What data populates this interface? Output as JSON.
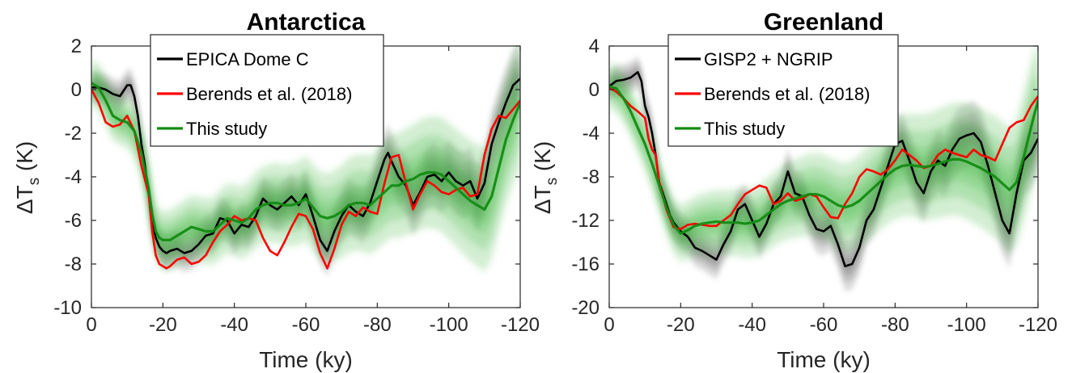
{
  "chart_data": [
    {
      "type": "line",
      "title": "Antarctica",
      "xlabel": "Time (ky)",
      "ylabel_prefix": "ΔT",
      "ylabel_sub": "s",
      "ylabel_suffix": " (K)",
      "xlim": [
        0,
        -120
      ],
      "ylim": [
        -10,
        2
      ],
      "xticks": [
        0,
        -20,
        -40,
        -60,
        -80,
        -100,
        -120
      ],
      "yticks": [
        -10,
        -8,
        -6,
        -4,
        -2,
        0,
        2
      ],
      "grid": false,
      "legend_position": "top-center",
      "series": [
        {
          "name": "EPICA Dome C",
          "color": "#000000",
          "band": true,
          "x": [
            0,
            -2,
            -4,
            -6,
            -8,
            -10,
            -11,
            -12,
            -13,
            -14,
            -15,
            -16,
            -17,
            -18,
            -19,
            -20,
            -21,
            -22,
            -24,
            -26,
            -28,
            -30,
            -32,
            -34,
            -36,
            -38,
            -40,
            -42,
            -44,
            -46,
            -48,
            -50,
            -52,
            -54,
            -56,
            -58,
            -60,
            -62,
            -64,
            -66,
            -68,
            -70,
            -72,
            -74,
            -76,
            -78,
            -80,
            -82,
            -83,
            -84,
            -86,
            -88,
            -90,
            -92,
            -94,
            -96,
            -98,
            -100,
            -102,
            -104,
            -106,
            -108,
            -110,
            -112,
            -114,
            -116,
            -118,
            -120
          ],
          "y": [
            0.1,
            0.1,
            0.0,
            -0.2,
            -0.3,
            0.2,
            0.2,
            -0.3,
            -1.2,
            -2.5,
            -3.5,
            -4.8,
            -6.0,
            -6.8,
            -7.2,
            -7.4,
            -7.5,
            -7.4,
            -7.3,
            -7.5,
            -7.4,
            -7.1,
            -6.7,
            -6.6,
            -5.9,
            -6.0,
            -6.6,
            -6.2,
            -6.3,
            -5.8,
            -5.0,
            -5.3,
            -5.5,
            -5.2,
            -4.9,
            -5.3,
            -4.8,
            -5.8,
            -6.9,
            -7.4,
            -6.5,
            -5.8,
            -5.3,
            -5.6,
            -5.8,
            -5.2,
            -4.2,
            -3.2,
            -2.9,
            -3.3,
            -4.0,
            -4.4,
            -5.3,
            -4.7,
            -4.0,
            -3.9,
            -4.2,
            -3.8,
            -4.2,
            -4.4,
            -4.2,
            -5.0,
            -4.3,
            -2.5,
            -1.5,
            -0.6,
            0.2,
            0.5
          ]
        },
        {
          "name": "Berends et al. (2018)",
          "color": "#ff0000",
          "band": false,
          "x": [
            0,
            -2,
            -4,
            -6,
            -8,
            -10,
            -12,
            -14,
            -16,
            -17,
            -18,
            -19,
            -20,
            -21,
            -22,
            -24,
            -26,
            -28,
            -30,
            -32,
            -34,
            -36,
            -38,
            -40,
            -42,
            -44,
            -46,
            -48,
            -50,
            -52,
            -54,
            -56,
            -58,
            -60,
            -62,
            -64,
            -66,
            -68,
            -70,
            -72,
            -74,
            -76,
            -78,
            -80,
            -82,
            -84,
            -86,
            -88,
            -90,
            -92,
            -94,
            -96,
            -98,
            -100,
            -102,
            -104,
            -106,
            -108,
            -110,
            -112,
            -114,
            -116,
            -118,
            -120
          ],
          "y": [
            0.0,
            -0.6,
            -1.5,
            -1.7,
            -1.6,
            -1.2,
            -1.9,
            -3.5,
            -4.8,
            -6.5,
            -7.6,
            -8.0,
            -8.1,
            -8.2,
            -8.1,
            -7.8,
            -7.7,
            -8.0,
            -7.9,
            -7.6,
            -7.0,
            -6.5,
            -6.2,
            -5.8,
            -6.0,
            -5.9,
            -6.0,
            -6.8,
            -7.4,
            -7.6,
            -7.0,
            -6.3,
            -5.7,
            -5.8,
            -6.4,
            -7.5,
            -8.2,
            -7.3,
            -6.2,
            -5.6,
            -5.8,
            -5.4,
            -5.6,
            -5.7,
            -4.3,
            -3.1,
            -3.0,
            -4.3,
            -5.5,
            -4.8,
            -4.2,
            -4.4,
            -4.7,
            -4.8,
            -4.6,
            -4.5,
            -4.9,
            -4.8,
            -3.0,
            -1.8,
            -1.2,
            -1.3,
            -0.9,
            -0.5
          ]
        },
        {
          "name": "This study",
          "color": "#138b13",
          "band": true,
          "x": [
            0,
            -2,
            -4,
            -6,
            -8,
            -10,
            -12,
            -14,
            -16,
            -17,
            -18,
            -19,
            -20,
            -22,
            -24,
            -26,
            -28,
            -30,
            -32,
            -34,
            -36,
            -38,
            -40,
            -42,
            -44,
            -46,
            -48,
            -50,
            -52,
            -54,
            -56,
            -58,
            -60,
            -62,
            -64,
            -66,
            -68,
            -70,
            -72,
            -74,
            -76,
            -78,
            -80,
            -82,
            -84,
            -86,
            -88,
            -90,
            -92,
            -94,
            -96,
            -98,
            -100,
            -102,
            -104,
            -106,
            -108,
            -110,
            -112,
            -114,
            -116,
            -118,
            -120
          ],
          "y": [
            0.3,
            0.1,
            -0.5,
            -1.2,
            -1.4,
            -1.5,
            -1.9,
            -2.9,
            -4.5,
            -5.7,
            -6.5,
            -6.8,
            -6.9,
            -6.9,
            -6.7,
            -6.5,
            -6.3,
            -6.4,
            -6.5,
            -6.5,
            -6.2,
            -5.9,
            -6.0,
            -6.1,
            -5.9,
            -5.5,
            -5.3,
            -5.2,
            -5.2,
            -5.3,
            -5.3,
            -5.2,
            -5.0,
            -5.4,
            -5.8,
            -5.9,
            -5.8,
            -5.6,
            -5.3,
            -5.2,
            -5.2,
            -5.3,
            -5.0,
            -4.7,
            -4.4,
            -4.4,
            -4.2,
            -4.1,
            -3.9,
            -3.8,
            -3.8,
            -3.9,
            -4.2,
            -4.5,
            -4.8,
            -5.1,
            -5.3,
            -5.5,
            -4.9,
            -3.6,
            -2.3,
            -1.4,
            -0.6
          ]
        }
      ]
    },
    {
      "type": "line",
      "title": "Greenland",
      "xlabel": "Time (ky)",
      "ylabel_prefix": "ΔT",
      "ylabel_sub": "s",
      "ylabel_suffix": " (K)",
      "xlim": [
        0,
        -120
      ],
      "ylim": [
        -20,
        4
      ],
      "xticks": [
        0,
        -20,
        -40,
        -60,
        -80,
        -100,
        -120
      ],
      "yticks": [
        -20,
        -16,
        -12,
        -8,
        -4,
        0,
        4
      ],
      "grid": false,
      "legend_position": "top-center",
      "series": [
        {
          "name": "GISP2 + NGRIP",
          "color": "#000000",
          "band": true,
          "x": [
            0,
            -2,
            -4,
            -6,
            -8,
            -9,
            -10,
            -11,
            -12,
            -13,
            -14,
            -15,
            -16,
            -17,
            -18,
            -20,
            -22,
            -24,
            -26,
            -28,
            -30,
            -32,
            -34,
            -36,
            -38,
            -40,
            -42,
            -44,
            -46,
            -48,
            -50,
            -52,
            -54,
            -56,
            -58,
            -60,
            -62,
            -64,
            -66,
            -68,
            -70,
            -72,
            -74,
            -76,
            -78,
            -80,
            -82,
            -84,
            -86,
            -88,
            -90,
            -92,
            -94,
            -96,
            -98,
            -100,
            -102,
            -104,
            -106,
            -108,
            -110,
            -112,
            -114,
            -116,
            -118,
            -120
          ],
          "y": [
            0.3,
            0.8,
            0.9,
            1.1,
            1.6,
            0.8,
            -1.5,
            -2.5,
            -4.0,
            -6.0,
            -8.5,
            -9.5,
            -10.5,
            -11.5,
            -12.2,
            -13.0,
            -13.5,
            -14.5,
            -14.8,
            -15.2,
            -15.6,
            -14.2,
            -13.0,
            -11.0,
            -10.5,
            -12.0,
            -13.5,
            -12.3,
            -10.5,
            -9.8,
            -7.5,
            -9.5,
            -9.8,
            -11.5,
            -12.8,
            -13.0,
            -12.5,
            -14.2,
            -16.2,
            -16.0,
            -14.5,
            -12.0,
            -11.0,
            -9.0,
            -7.0,
            -5.0,
            -4.7,
            -6.5,
            -8.5,
            -9.5,
            -7.5,
            -6.5,
            -7.0,
            -5.5,
            -4.5,
            -4.2,
            -4.0,
            -4.8,
            -7.0,
            -9.5,
            -12.0,
            -13.2,
            -9.5,
            -6.5,
            -5.8,
            -4.5
          ]
        },
        {
          "name": "Berends et al. (2018)",
          "color": "#ff0000",
          "band": false,
          "x": [
            0,
            -2,
            -4,
            -6,
            -8,
            -10,
            -11,
            -12,
            -13,
            -14,
            -16,
            -18,
            -20,
            -22,
            -24,
            -26,
            -28,
            -30,
            -32,
            -34,
            -36,
            -38,
            -40,
            -42,
            -44,
            -46,
            -48,
            -50,
            -52,
            -54,
            -56,
            -58,
            -60,
            -62,
            -64,
            -66,
            -68,
            -70,
            -72,
            -74,
            -76,
            -78,
            -80,
            -82,
            -84,
            -86,
            -88,
            -90,
            -92,
            -94,
            -96,
            -98,
            -100,
            -102,
            -104,
            -106,
            -108,
            -110,
            -112,
            -114,
            -116,
            -118,
            -120
          ],
          "y": [
            0.2,
            -0.2,
            -0.8,
            -1.5,
            -2.0,
            -2.6,
            -4.5,
            -5.5,
            -6.0,
            -8.5,
            -11.0,
            -12.6,
            -12.8,
            -12.4,
            -12.3,
            -12.4,
            -12.5,
            -12.5,
            -12.0,
            -11.5,
            -10.5,
            -9.6,
            -9.2,
            -8.8,
            -9.0,
            -10.5,
            -10.2,
            -9.5,
            -10.2,
            -10.0,
            -9.6,
            -9.8,
            -10.8,
            -11.7,
            -11.8,
            -10.5,
            -9.5,
            -8.0,
            -7.3,
            -7.5,
            -7.8,
            -7.3,
            -6.5,
            -5.5,
            -6.0,
            -6.5,
            -7.2,
            -7.0,
            -6.0,
            -5.5,
            -5.8,
            -6.0,
            -6.2,
            -5.5,
            -6.0,
            -6.2,
            -6.5,
            -5.0,
            -3.5,
            -3.0,
            -2.8,
            -1.5,
            -0.6
          ]
        },
        {
          "name": "This study",
          "color": "#138b13",
          "band": true,
          "x": [
            0,
            -2,
            -4,
            -6,
            -8,
            -10,
            -12,
            -14,
            -16,
            -18,
            -20,
            -22,
            -24,
            -26,
            -28,
            -30,
            -32,
            -34,
            -36,
            -38,
            -40,
            -42,
            -44,
            -46,
            -48,
            -50,
            -52,
            -54,
            -56,
            -58,
            -60,
            -62,
            -64,
            -66,
            -68,
            -70,
            -72,
            -74,
            -76,
            -78,
            -80,
            -82,
            -84,
            -86,
            -88,
            -90,
            -92,
            -94,
            -96,
            -98,
            -100,
            -102,
            -104,
            -106,
            -108,
            -110,
            -112,
            -114,
            -116,
            -118,
            -120
          ],
          "y": [
            0.3,
            0.1,
            -0.8,
            -2.0,
            -3.5,
            -5.0,
            -6.8,
            -8.8,
            -10.8,
            -12.4,
            -13.2,
            -12.9,
            -12.5,
            -12.3,
            -12.2,
            -12.1,
            -12.2,
            -12.2,
            -12.2,
            -12.3,
            -12.2,
            -12.0,
            -11.5,
            -11.0,
            -10.5,
            -10.2,
            -10.0,
            -9.8,
            -9.6,
            -9.6,
            -9.8,
            -10.2,
            -10.6,
            -10.8,
            -10.6,
            -10.2,
            -9.6,
            -9.0,
            -8.4,
            -7.8,
            -7.3,
            -7.0,
            -6.9,
            -7.0,
            -7.1,
            -7.0,
            -6.8,
            -6.6,
            -6.4,
            -6.4,
            -6.6,
            -6.9,
            -7.2,
            -7.6,
            -8.0,
            -8.6,
            -9.2,
            -8.5,
            -6.2,
            -3.5,
            -1.0
          ]
        }
      ]
    }
  ]
}
